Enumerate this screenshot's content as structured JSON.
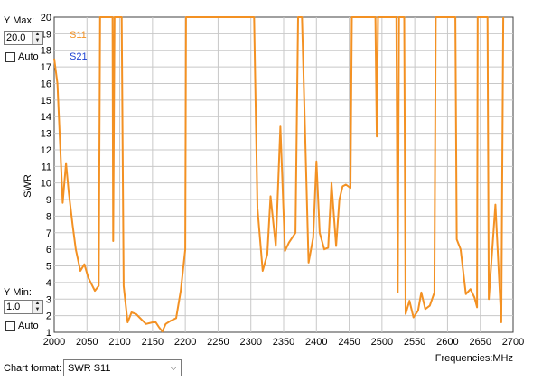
{
  "ymax_panel": {
    "label": "Y Max:",
    "value": "20.0",
    "auto_label": "Auto",
    "auto_checked": false
  },
  "ymin_panel": {
    "label": "Y Min:",
    "value": "1.0",
    "auto_label": "Auto",
    "auto_checked": false
  },
  "chart_format": {
    "label": "Chart format:",
    "selected": "SWR S11"
  },
  "icons": {
    "spin_up": "▲",
    "spin_down": "▼",
    "dropdown": "⌵"
  },
  "chart_data": {
    "type": "line",
    "title": "",
    "xlabel": "Frequencies:MHz",
    "ylabel": "SWR",
    "xlim": [
      2000,
      2700
    ],
    "ylim": [
      1,
      20
    ],
    "x_ticks": [
      2000,
      2050,
      2100,
      2150,
      2200,
      2250,
      2300,
      2350,
      2400,
      2450,
      2500,
      2550,
      2600,
      2650,
      2700
    ],
    "y_ticks": [
      1,
      2,
      3,
      4,
      5,
      6,
      7,
      8,
      9,
      10,
      11,
      12,
      13,
      14,
      15,
      16,
      17,
      18,
      19,
      20
    ],
    "grid": true,
    "legend_placement": "top-left",
    "series": [
      {
        "name": "S11",
        "color": "#f39123",
        "points": [
          [
            2000,
            17.5
          ],
          [
            2005,
            16
          ],
          [
            2013,
            8.8
          ],
          [
            2018,
            11.2
          ],
          [
            2022,
            9.5
          ],
          [
            2028,
            7.5
          ],
          [
            2033,
            6
          ],
          [
            2040,
            4.7
          ],
          [
            2046,
            5.1
          ],
          [
            2052,
            4.3
          ],
          [
            2062,
            3.5
          ],
          [
            2068,
            3.8
          ],
          [
            2070,
            20
          ],
          [
            2089,
            20
          ],
          [
            2090,
            6.5
          ],
          [
            2092,
            20
          ],
          [
            2103,
            20
          ],
          [
            2106,
            3.8
          ],
          [
            2112,
            1.6
          ],
          [
            2118,
            2.2
          ],
          [
            2125,
            2.1
          ],
          [
            2130,
            1.9
          ],
          [
            2140,
            1.5
          ],
          [
            2150,
            1.6
          ],
          [
            2155,
            1.6
          ],
          [
            2160,
            1.3
          ],
          [
            2165,
            1.05
          ],
          [
            2170,
            1.5
          ],
          [
            2178,
            1.7
          ],
          [
            2186,
            1.85
          ],
          [
            2193,
            3.5
          ],
          [
            2200,
            6
          ],
          [
            2201,
            20
          ],
          [
            2305,
            20
          ],
          [
            2310,
            8.5
          ],
          [
            2318,
            4.7
          ],
          [
            2325,
            5.7
          ],
          [
            2330,
            9.2
          ],
          [
            2338,
            6.2
          ],
          [
            2345,
            13.4
          ],
          [
            2352,
            5.9
          ],
          [
            2358,
            6.4
          ],
          [
            2368,
            7
          ],
          [
            2372,
            20
          ],
          [
            2378,
            20
          ],
          [
            2388,
            5.2
          ],
          [
            2395,
            6.7
          ],
          [
            2400,
            11.3
          ],
          [
            2405,
            7
          ],
          [
            2412,
            6
          ],
          [
            2418,
            6.1
          ],
          [
            2423,
            10
          ],
          [
            2430,
            6.2
          ],
          [
            2435,
            9
          ],
          [
            2440,
            9.8
          ],
          [
            2445,
            9.9
          ],
          [
            2452,
            9.7
          ],
          [
            2454,
            20
          ],
          [
            2490,
            20
          ],
          [
            2492,
            12.8
          ],
          [
            2494,
            20
          ],
          [
            2522,
            20
          ],
          [
            2524,
            3.4
          ],
          [
            2526,
            20
          ],
          [
            2534,
            20
          ],
          [
            2536,
            2.1
          ],
          [
            2542,
            2.9
          ],
          [
            2548,
            1.9
          ],
          [
            2555,
            2.3
          ],
          [
            2560,
            3.4
          ],
          [
            2566,
            2.4
          ],
          [
            2573,
            2.6
          ],
          [
            2580,
            3.4
          ],
          [
            2582,
            20
          ],
          [
            2612,
            20
          ],
          [
            2614,
            6.6
          ],
          [
            2620,
            6
          ],
          [
            2628,
            3.3
          ],
          [
            2635,
            3.6
          ],
          [
            2641,
            3.1
          ],
          [
            2645,
            2.5
          ],
          [
            2646,
            20
          ],
          [
            2661,
            20
          ],
          [
            2663,
            3
          ],
          [
            2673,
            8.7
          ],
          [
            2682,
            1.6
          ],
          [
            2685,
            20
          ]
        ]
      },
      {
        "name": "S21",
        "color": "#1a3fd1",
        "points": []
      }
    ]
  }
}
